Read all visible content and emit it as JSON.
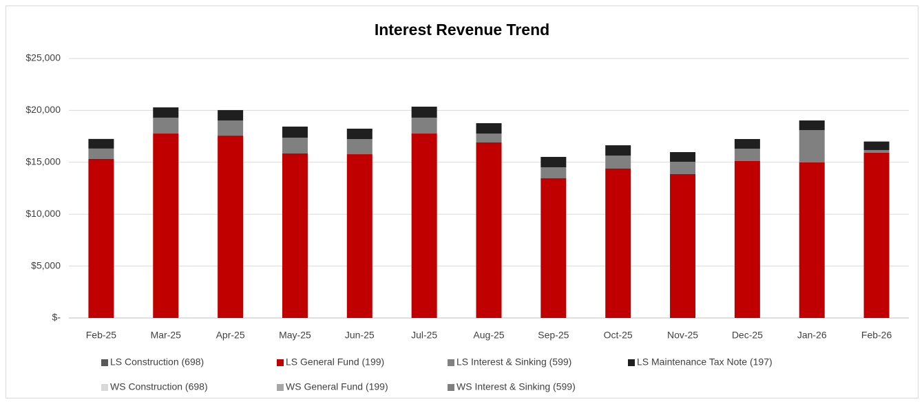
{
  "chart_data": {
    "type": "stacked_bar",
    "title": "Interest Revenue Trend",
    "categories": [
      "Feb-25",
      "Mar-25",
      "Apr-25",
      "May-25",
      "Jun-25",
      "Jul-25",
      "Aug-25",
      "Sep-25",
      "Oct-25",
      "Nov-25",
      "Dec-25",
      "Jan-26",
      "Feb-26"
    ],
    "series": [
      {
        "name": "LS Construction (698)",
        "color": "#595959",
        "values": [
          0,
          0,
          0,
          0,
          0,
          0,
          0,
          0,
          0,
          0,
          0,
          0,
          0
        ]
      },
      {
        "name": "LS General Fund (199)",
        "color": "#c00000",
        "values": [
          15320,
          17770,
          17570,
          15850,
          15780,
          17770,
          16910,
          13460,
          14390,
          13860,
          15120,
          14990,
          15920
        ]
      },
      {
        "name": "LS Interest & Sinking (599)",
        "color": "#808080",
        "values": [
          1000,
          1530,
          1460,
          1520,
          1460,
          1530,
          860,
          1060,
          1260,
          1190,
          1190,
          3110,
          260
        ]
      },
      {
        "name": "LS Maintenance Tax Note (197)",
        "color": "#1f1f1f",
        "values": [
          930,
          990,
          1000,
          1070,
          1000,
          1060,
          1000,
          1000,
          990,
          930,
          930,
          930,
          800
        ]
      },
      {
        "name": "WS Construction (698)",
        "color": "#d9d9d9",
        "values": [
          0,
          0,
          0,
          0,
          0,
          0,
          0,
          0,
          0,
          0,
          0,
          0,
          0
        ]
      },
      {
        "name": "WS General Fund (199)",
        "color": "#a6a6a6",
        "values": [
          0,
          0,
          0,
          0,
          0,
          0,
          0,
          0,
          0,
          0,
          0,
          0,
          70
        ]
      },
      {
        "name": "WS Interest & Sinking (599)",
        "color": "#7f7f7f",
        "values": [
          0,
          0,
          0,
          0,
          0,
          0,
          0,
          0,
          0,
          0,
          0,
          0,
          0
        ]
      }
    ],
    "ylim": [
      0,
      25000
    ],
    "yticks": [
      {
        "value": 0,
        "label": "$-"
      },
      {
        "value": 5000,
        "label": "$5,000"
      },
      {
        "value": 10000,
        "label": "$10,000"
      },
      {
        "value": 15000,
        "label": "$15,000"
      },
      {
        "value": 20000,
        "label": "$20,000"
      },
      {
        "value": 25000,
        "label": "$25,000"
      }
    ],
    "grid": true
  }
}
